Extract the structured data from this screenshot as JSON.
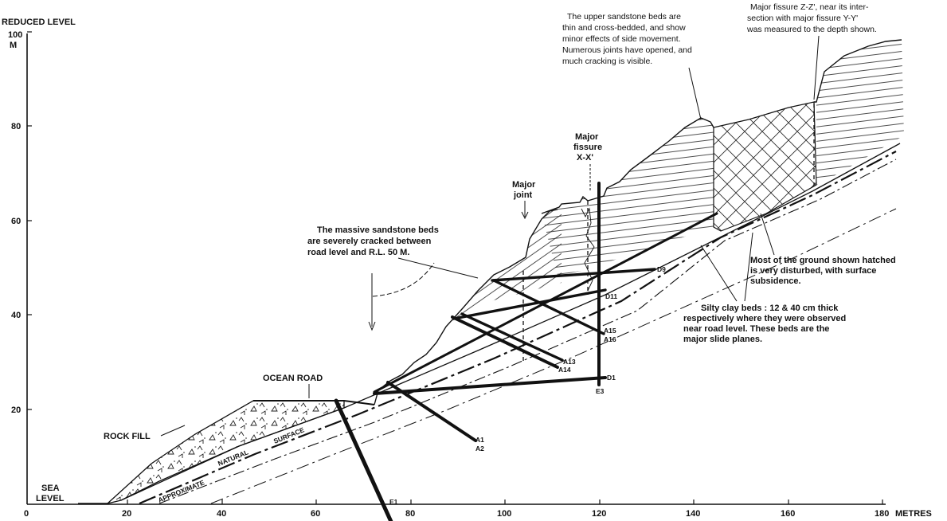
{
  "title": "",
  "axes": {
    "y_label": "REDUCED LEVEL",
    "y_unit": "M",
    "y_ticks": [
      "100",
      "80",
      "60",
      "40",
      "20",
      "0"
    ],
    "x_ticks": [
      "20",
      "40",
      "60",
      "80",
      "100",
      "120",
      "140",
      "160",
      "180"
    ],
    "x_unit": "METRES"
  },
  "labels": {
    "sea_level": [
      "SEA",
      "LEVEL"
    ],
    "ocean_road": "OCEAN ROAD",
    "rock_fill": "ROCK FILL",
    "approximate_natural_surface": [
      "APPROXIMATE",
      "NATURAL",
      "SURFACE"
    ],
    "major_joint": [
      "Major",
      "joint"
    ],
    "major_fissure_xx": [
      "Major",
      "fissure",
      "X-X'"
    ]
  },
  "notes": {
    "massive_sandstone": [
      "The massive sandstone beds",
      "are severely cracked between",
      "road level and R.L. 50 M."
    ],
    "upper_sandstone": [
      "The upper sandstone beds are",
      "thin and cross-bedded, and show",
      "minor effects of side movement.",
      "Numerous joints have opened, and",
      "much cracking is visible."
    ],
    "major_fissure_zz": [
      "Major fissure Z-Z', near its inter-",
      "section with major fissure Y-Y'",
      "was measured to the depth shown."
    ],
    "disturbed_ground": [
      "Most of the ground shown hatched",
      "is very disturbed, with surface",
      "subsidence."
    ],
    "silty_clay": [
      "Silty clay beds : 12 & 40 cm thick",
      "respectively where they were observed",
      "near road level.  These beds are the",
      "major slide planes."
    ]
  },
  "boreholes": [
    "E1",
    "A1",
    "A2",
    "D1",
    "E3",
    "A13",
    "A14",
    "A15",
    "A16",
    "D9",
    "D11"
  ]
}
